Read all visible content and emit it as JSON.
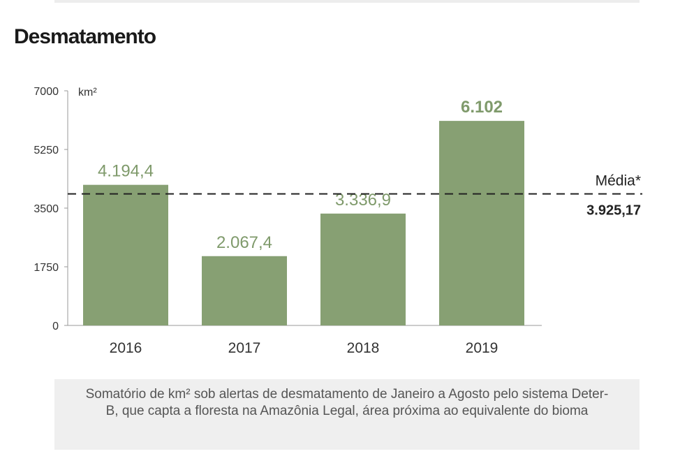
{
  "title": "Desmatamento",
  "footnote": "Somatório de km² sob alertas de desmatamento de Janeiro a Agosto pelo sistema Deter-B, que capta a floresta na Amazônia Legal, área próxima ao equivalente do bioma",
  "colors": {
    "bar": "#87a073",
    "bar_label": "#7f9a6b",
    "axis": "#999999",
    "text": "#333333"
  },
  "chart_data": {
    "type": "bar",
    "title": "Desmatamento",
    "unit_label": "km²",
    "categories": [
      "2016",
      "2017",
      "2018",
      "2019"
    ],
    "values": [
      4194.4,
      2067.4,
      3336.9,
      6102
    ],
    "value_labels": [
      "4.194,4",
      "2.067,4",
      "3.336,9",
      "6.102"
    ],
    "ylim": [
      0,
      7000
    ],
    "yticks": [
      0,
      1750,
      3500,
      5250,
      7000
    ],
    "grid": false,
    "reference_line": {
      "label": "Média*",
      "value": 3925.17,
      "value_label": "3.925,17",
      "style": "dashed"
    }
  }
}
